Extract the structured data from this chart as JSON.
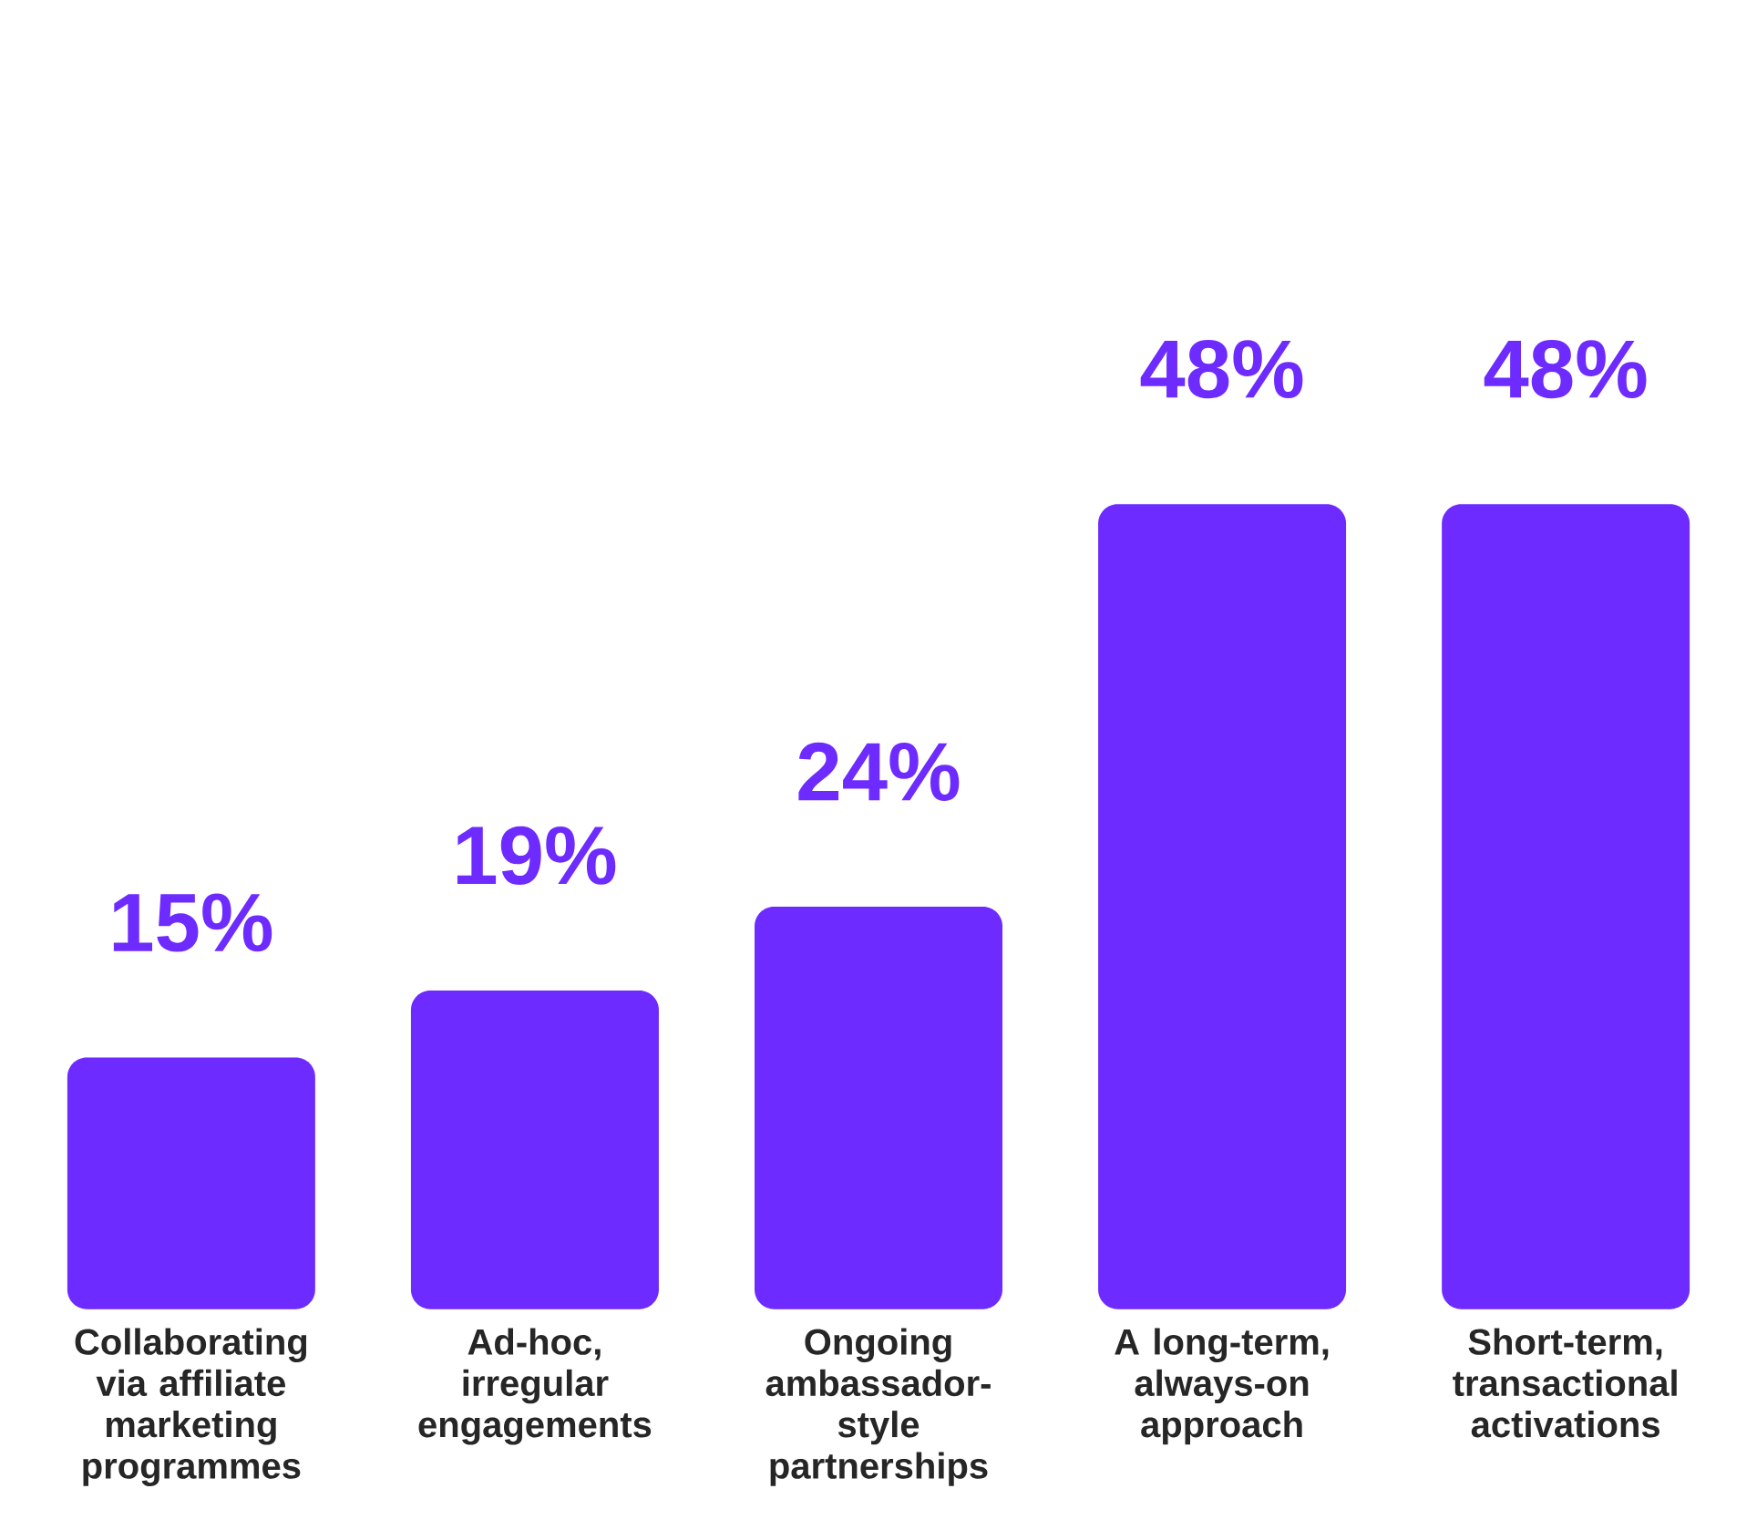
{
  "chart_data": {
    "type": "bar",
    "categories": [
      "Collaborating via affiliate marketing programmes",
      "Ad-hoc, irregular engagements",
      "Ongoing ambassador-style partnerships",
      "A long-term, always-on approach",
      "Short-term, transactional activations"
    ],
    "values": [
      15,
      19,
      24,
      48,
      48
    ],
    "color": "#6e2bff",
    "data_labels": true,
    "value_labels": [
      "15%",
      "19%",
      "24%",
      "48%",
      "48%"
    ]
  }
}
